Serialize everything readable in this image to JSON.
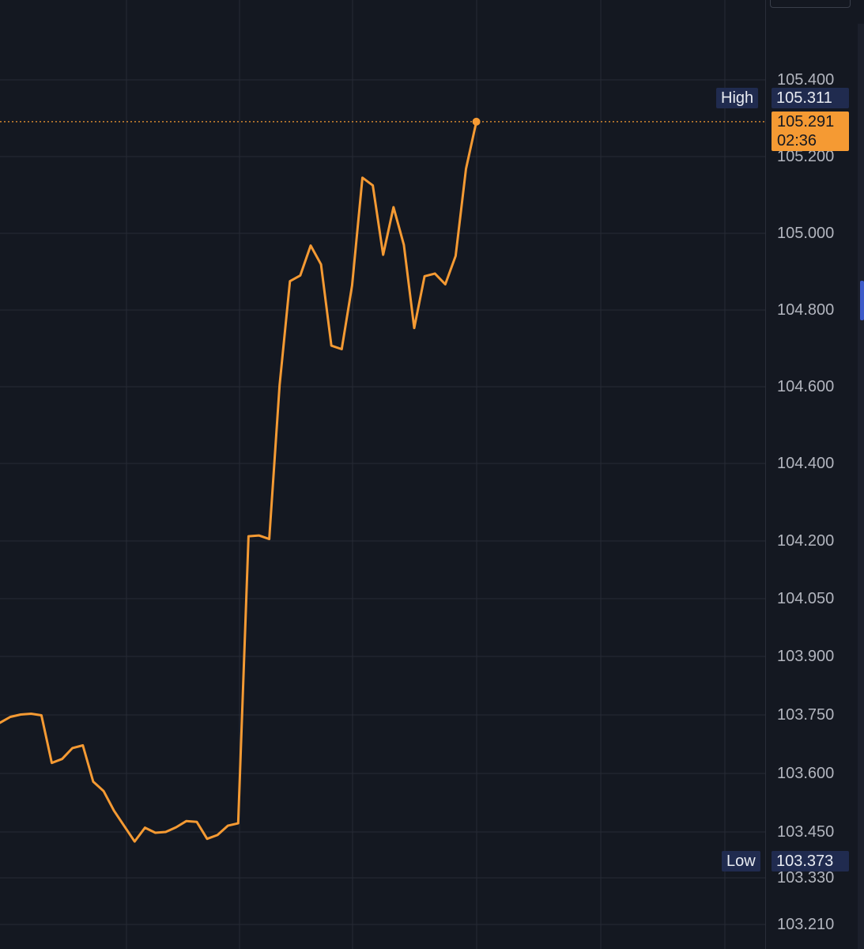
{
  "chart_data": {
    "type": "line",
    "title": "",
    "xlabel": "",
    "ylabel": "",
    "y_ticks": [
      "105.400",
      "105.200",
      "105.000",
      "104.800",
      "104.600",
      "104.400",
      "104.200",
      "104.050",
      "103.900",
      "103.750",
      "103.600",
      "103.450",
      "103.330",
      "103.210"
    ],
    "series": [
      {
        "color": "#f59a33",
        "values": [
          103.73,
          103.745,
          103.751,
          103.753,
          103.749,
          103.627,
          103.637,
          103.665,
          103.672,
          103.579,
          103.555,
          103.505,
          103.465,
          103.425,
          103.461,
          103.448,
          103.45,
          103.462,
          103.478,
          103.476,
          103.432,
          103.442,
          103.466,
          103.472,
          104.212,
          104.214,
          104.205,
          104.604,
          104.875,
          104.89,
          104.968,
          104.919,
          104.707,
          104.698,
          104.864,
          105.145,
          105.125,
          104.944,
          105.068,
          104.97,
          104.753,
          104.888,
          104.895,
          104.867,
          104.941,
          105.168,
          105.291
        ]
      }
    ],
    "grid": true,
    "high": {
      "label": "High",
      "value": "105.311"
    },
    "low": {
      "label": "Low",
      "value": "103.373"
    },
    "last_price": {
      "value": "105.291",
      "countdown": "02:36"
    },
    "colors": {
      "background": "#141821",
      "line": "#f59a33",
      "grid": "#262a35",
      "axis_text": "#b2b5be",
      "marker_bg": "#202b4f"
    }
  }
}
